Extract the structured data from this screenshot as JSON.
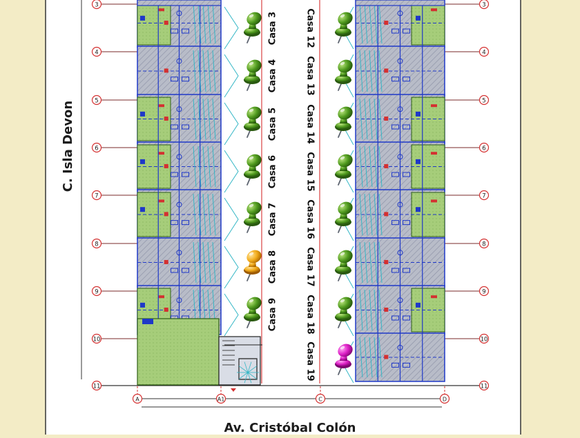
{
  "street_left": "C. Isla Devon",
  "street_bottom": "Av. Cristóbal Colón",
  "row_labels": [
    "3",
    "4",
    "5",
    "6",
    "7",
    "8",
    "9",
    "10",
    "11"
  ],
  "col_labels": [
    "A",
    "A1",
    "C",
    "D"
  ],
  "houses_left": [
    {
      "label": "Casa 3",
      "pin": "green"
    },
    {
      "label": "Casa 4",
      "pin": "green"
    },
    {
      "label": "Casa 5",
      "pin": "green"
    },
    {
      "label": "Casa 6",
      "pin": "green"
    },
    {
      "label": "Casa 7",
      "pin": "green"
    },
    {
      "label": "Casa 8",
      "pin": "orange"
    },
    {
      "label": "Casa 9",
      "pin": "green"
    }
  ],
  "houses_right": [
    {
      "label": "Casa 12",
      "pin": "green"
    },
    {
      "label": "Casa 13",
      "pin": "green"
    },
    {
      "label": "Casa 14",
      "pin": "green"
    },
    {
      "label": "Casa 15",
      "pin": "green"
    },
    {
      "label": "Casa 16",
      "pin": "green"
    },
    {
      "label": "Casa 17",
      "pin": "green"
    },
    {
      "label": "Casa 18",
      "pin": "green"
    },
    {
      "label": "Casa 19",
      "pin": "magenta"
    }
  ],
  "colors": {
    "page_bg": "#f3ecc6",
    "sheet_bg": "#ffffff",
    "grid_red": "#d43030",
    "wall_blue": "#1f38c8",
    "floor_gray": "#b8bcc8",
    "garden_green": "#a6cd7a",
    "pin_green": "#4f9a1e",
    "pin_orange": "#f2ac1c",
    "pin_magenta": "#dd1fc6"
  }
}
